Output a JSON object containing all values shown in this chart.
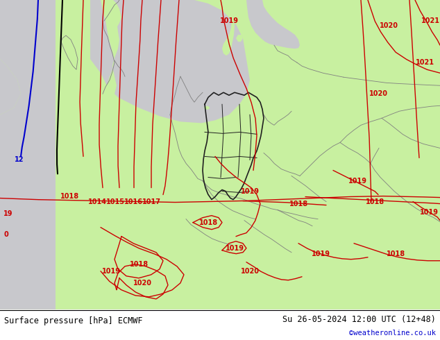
{
  "title_left": "Surface pressure [hPa] ECMWF",
  "title_right": "Su 26-05-2024 12:00 UTC (12+48)",
  "credit": "©weatheronline.co.uk",
  "land_green": "#c8f0a0",
  "sea_gray": "#c8c8cc",
  "border_dark": "#202020",
  "border_gray": "#808080",
  "isobar_red": "#cc0000",
  "isobar_blue": "#0000cc",
  "isobar_black": "#000000",
  "figsize": [
    6.34,
    4.9
  ],
  "dpi": 100
}
